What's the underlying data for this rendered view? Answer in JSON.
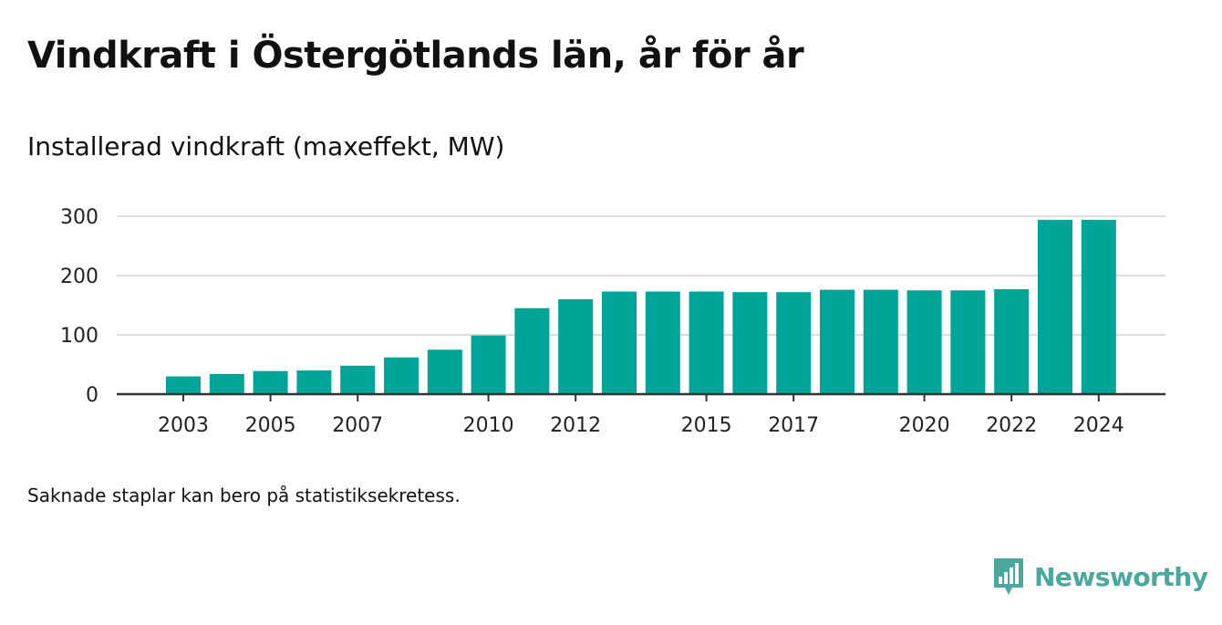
{
  "header": {
    "title": "Vindkraft i Östergötlands län, år för år",
    "subtitle": "Installerad vindkraft (maxeffekt, MW)"
  },
  "footer": {
    "note": "Saknade staplar kan bero på statistiksekretess.",
    "brand": "Newsworthy",
    "brand_icon": "bar-chart-speech-bubble-icon"
  },
  "colors": {
    "bar": "#00a598",
    "grid": "#dddddd",
    "axis": "#333333",
    "brand": "#4aa89d"
  },
  "chart_data": {
    "type": "bar",
    "title": "Installerad vindkraft (maxeffekt, MW)",
    "xlabel": "",
    "ylabel": "",
    "ylim": [
      0,
      300
    ],
    "yticks": [
      0,
      100,
      200,
      300
    ],
    "xtick_labels": [
      "2003",
      "2005",
      "2007",
      "2010",
      "2012",
      "2015",
      "2017",
      "2020",
      "2022",
      "2024"
    ],
    "grid": true,
    "categories": [
      "2003",
      "2004",
      "2005",
      "2006",
      "2007",
      "2008",
      "2009",
      "2010",
      "2011",
      "2012",
      "2013",
      "2014",
      "2015",
      "2016",
      "2017",
      "2018",
      "2019",
      "2020",
      "2021",
      "2022",
      "2023",
      "2024"
    ],
    "values": [
      30,
      34,
      39,
      40,
      48,
      62,
      75,
      99,
      145,
      160,
      173,
      173,
      173,
      172,
      172,
      176,
      176,
      175,
      175,
      177,
      294,
      294
    ]
  }
}
